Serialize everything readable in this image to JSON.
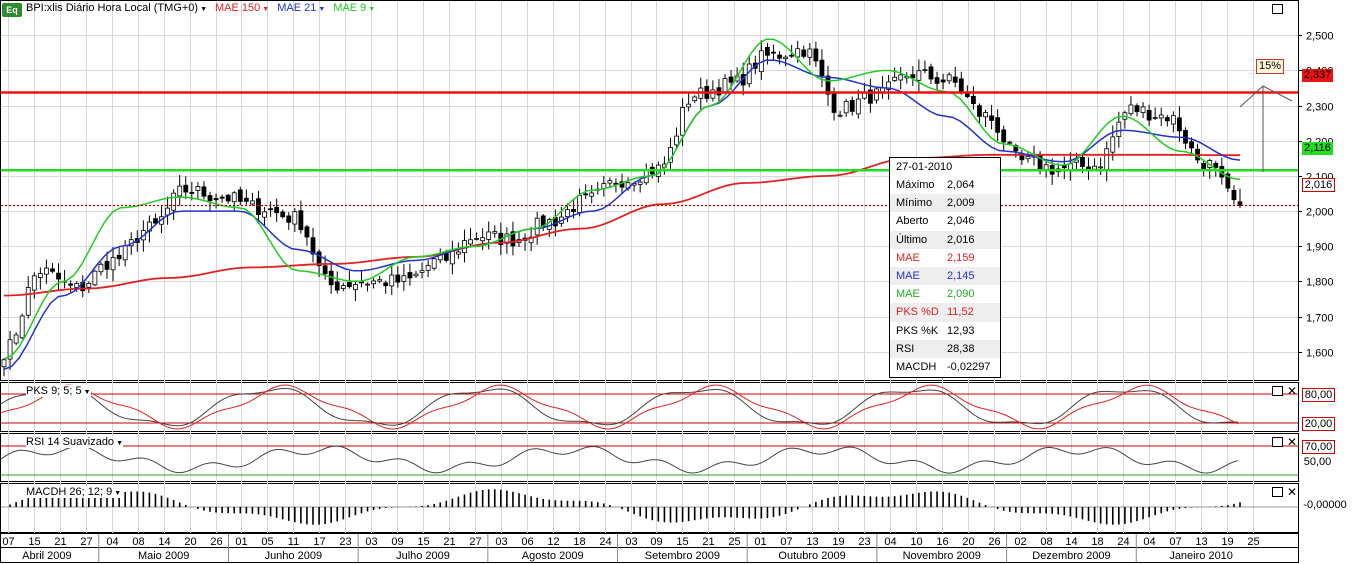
{
  "header": {
    "logo_text": "Eq",
    "symbol": "BPI:xlis Diário Hora Local (TMG+0)",
    "ma1_label": "MAE 150",
    "ma1_color": "#dd2222",
    "ma2_label": "MAE 21",
    "ma2_color": "#2233cc",
    "ma3_label": "MAE 9",
    "ma3_color": "#22cc22"
  },
  "panels": {
    "stoch_label": "PKS 9; 5; 5",
    "rsi_label": "RSI 14 Suavizado",
    "macd_label": "MACDH 26; 12; 9"
  },
  "price_tags": {
    "red_line": "2,337",
    "green_line": "2,116",
    "last": "2,016",
    "target_pct": "15%"
  },
  "oscillator_tags": {
    "stoch_high": "80,00",
    "stoch_low": "20,00",
    "rsi_high": "70,00",
    "rsi_mid": "50,00",
    "macd_zero": "-0,00000"
  },
  "tooltip": {
    "date": "27-01-2010",
    "rows": [
      {
        "k": "Máximo",
        "v": "2,064",
        "color": "#000000"
      },
      {
        "k": "Mínimo",
        "v": "2,009",
        "color": "#000000"
      },
      {
        "k": "Aberto",
        "v": "2,046",
        "color": "#000000"
      },
      {
        "k": "Último",
        "v": "2,016",
        "color": "#000000"
      },
      {
        "k": "MAE",
        "v": "2,159",
        "color": "#dd2222"
      },
      {
        "k": "MAE",
        "v": "2,145",
        "color": "#2233cc"
      },
      {
        "k": "MAE",
        "v": "2,090",
        "color": "#22aa22"
      },
      {
        "k": "PKS %D",
        "v": "11,52",
        "color": "#dd2222"
      },
      {
        "k": "PKS %K",
        "v": "12,93",
        "color": "#000000"
      },
      {
        "k": "RSI",
        "v": "28,38",
        "color": "#000000"
      },
      {
        "k": "MACDH",
        "v": "-0,02297",
        "color": "#000000"
      }
    ]
  },
  "chart_data": {
    "type": "candlestick",
    "title": "BPI:xlis Diário Hora Local (TMG+0)",
    "ylim": [
      1.52,
      2.6
    ],
    "y_ticks": [
      "2,500",
      "2,400",
      "2,300",
      "2,200",
      "2,100",
      "2,000",
      "1,900",
      "1,800",
      "1,700",
      "1,600"
    ],
    "y_tick_values": [
      2.5,
      2.4,
      2.3,
      2.2,
      2.1,
      2.0,
      1.9,
      1.8,
      1.7,
      1.6
    ],
    "horizontal_lines": [
      {
        "value": 2.337,
        "color": "#ee1111",
        "style": "solid"
      },
      {
        "value": 2.116,
        "color": "#22dd22",
        "style": "solid"
      },
      {
        "value": 2.016,
        "color": "#cc0000",
        "style": "dotted"
      }
    ],
    "x_day_labels": [
      "07",
      "15",
      "21",
      "27",
      "04",
      "08",
      "14",
      "20",
      "26",
      "01",
      "05",
      "11",
      "17",
      "23",
      "03",
      "09",
      "15",
      "21",
      "27",
      "03",
      "06",
      "12",
      "18",
      "24",
      "03",
      "09",
      "15",
      "21",
      "25",
      "01",
      "07",
      "13",
      "19",
      "23",
      "04",
      "10",
      "16",
      "20",
      "26",
      "02",
      "08",
      "14",
      "18",
      "24",
      "04",
      "07",
      "13",
      "19",
      "25"
    ],
    "x_month_labels": [
      "Abril 2009",
      "Maio 2009",
      "Junho 2009",
      "Julho 2009",
      "Agosto 2009",
      "Setembro 2009",
      "Outubro 2009",
      "Novembro 2009",
      "Dezembro 2009",
      "Janeiro 2010"
    ],
    "close_waypoints": [
      1.6,
      1.83,
      1.78,
      1.86,
      1.95,
      2.06,
      2.04,
      2.01,
      1.98,
      1.79,
      1.8,
      1.8,
      1.86,
      1.93,
      1.92,
      1.97,
      2.03,
      2.09,
      2.12,
      2.33,
      2.36,
      2.44,
      2.46,
      2.29,
      2.33,
      2.39,
      2.37,
      2.27,
      2.14,
      2.12,
      2.13,
      2.29,
      2.27,
      2.14,
      2.016
    ],
    "mae150_waypoints": [
      1.76,
      1.78,
      1.81,
      1.84,
      1.85,
      1.87,
      1.91,
      1.95,
      2.02,
      2.08,
      2.1,
      2.15,
      2.16,
      2.16,
      2.16,
      2.159
    ],
    "mae21_waypoints": [
      1.55,
      1.76,
      1.9,
      2.0,
      2.0,
      1.89,
      1.83,
      1.86,
      1.9,
      1.95,
      2.0,
      2.1,
      2.3,
      2.43,
      2.38,
      2.35,
      2.27,
      2.17,
      2.14,
      2.23,
      2.21,
      2.145
    ],
    "mae9_waypoints": [
      1.58,
      1.8,
      2.01,
      2.04,
      2.01,
      1.83,
      1.8,
      1.87,
      1.9,
      1.95,
      2.06,
      2.1,
      2.3,
      2.49,
      2.37,
      2.4,
      2.34,
      2.19,
      2.13,
      2.27,
      2.17,
      2.09
    ]
  }
}
